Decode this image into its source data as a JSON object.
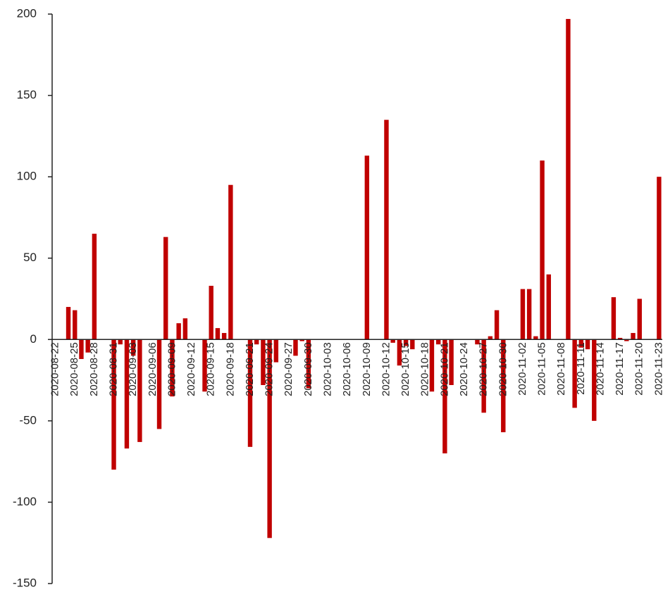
{
  "chart_data": {
    "type": "bar",
    "categories": [
      "2020-08-22",
      null,
      null,
      "2020-08-25",
      null,
      null,
      "2020-08-28",
      null,
      null,
      "2020-08-31",
      null,
      null,
      "2020-09-03",
      null,
      null,
      "2020-09-06",
      null,
      null,
      "2020-09-09",
      null,
      null,
      "2020-09-12",
      null,
      null,
      "2020-09-15",
      null,
      null,
      "2020-09-18",
      null,
      null,
      "2020-09-21",
      null,
      null,
      "2020-09-24",
      null,
      null,
      "2020-09-27",
      null,
      null,
      "2020-09-30",
      null,
      null,
      "2020-10-03",
      null,
      null,
      "2020-10-06",
      null,
      null,
      "2020-10-09",
      null,
      null,
      "2020-10-12",
      null,
      null,
      "2020-10-15",
      null,
      null,
      "2020-10-18",
      null,
      null,
      "2020-10-21",
      null,
      null,
      "2020-10-24",
      null,
      null,
      "2020-10-27",
      null,
      null,
      "2020-10-30",
      null,
      null,
      "2020-11-02",
      null,
      null,
      "2020-11-05",
      null,
      null,
      "2020-11-08",
      null,
      null,
      "2020-11-11",
      null,
      null,
      "2020-11-14",
      null,
      null,
      "2020-11-17",
      null,
      null,
      "2020-11-20",
      null,
      null,
      "2020-11-23"
    ],
    "values": [
      0,
      0,
      20,
      18,
      -12,
      -8,
      65,
      0,
      0,
      -80,
      -3,
      -67,
      -10,
      -63,
      0,
      0,
      -55,
      63,
      -35,
      10,
      13,
      0,
      0,
      -32,
      33,
      7,
      4,
      95,
      0,
      0,
      -66,
      -3,
      -28,
      -122,
      -14,
      0,
      0,
      -10,
      -1,
      -30,
      0,
      0,
      0,
      0,
      0,
      0,
      0,
      0,
      113,
      0,
      0,
      135,
      -2,
      -16,
      -4,
      -6,
      0,
      0,
      -32,
      -3,
      -70,
      -28,
      0,
      0,
      0,
      -3,
      -45,
      2,
      18,
      -57,
      0,
      0,
      31,
      31,
      2,
      110,
      40,
      0,
      0,
      197,
      -42,
      -5,
      -6,
      -50,
      0,
      0,
      26,
      1,
      -1,
      4,
      25,
      0,
      0,
      100
    ],
    "color": "#c00000",
    "ylim": [
      -150,
      200
    ],
    "yticks": [
      -150,
      -100,
      -50,
      0,
      50,
      100,
      150,
      200
    ],
    "grid": false
  }
}
